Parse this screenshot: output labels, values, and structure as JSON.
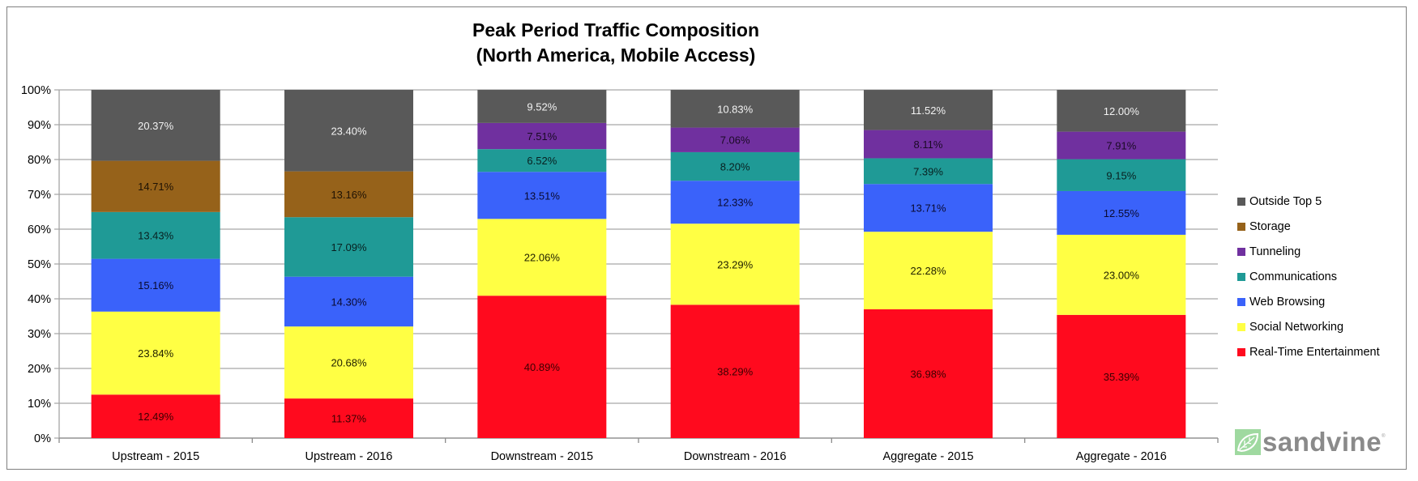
{
  "chart_data": {
    "type": "bar",
    "stacked": true,
    "title": "Peak Period Traffic Composition",
    "subtitle": "(North America, Mobile Access)",
    "xlabel": "",
    "ylabel": "",
    "ylim": [
      0,
      100
    ],
    "yticks": [
      "0%",
      "10%",
      "20%",
      "30%",
      "40%",
      "50%",
      "60%",
      "70%",
      "80%",
      "90%",
      "100%"
    ],
    "grid": true,
    "legend_position": "right",
    "categories": [
      "Upstream - 2015",
      "Upstream - 2016",
      "Downstream - 2015",
      "Downstream - 2016",
      "Aggregate - 2015",
      "Aggregate - 2016"
    ],
    "series": [
      {
        "name": "Real-Time Entertainment",
        "color": "#ff0a1e",
        "label_color": "#3a0000",
        "values": [
          12.49,
          11.37,
          40.89,
          38.29,
          36.98,
          35.39
        ],
        "labels": [
          "12.49%",
          "11.37%",
          "40.89%",
          "38.29%",
          "36.98%",
          "35.39%"
        ]
      },
      {
        "name": "Social Networking",
        "color": "#ffff44",
        "label_color": "#222200",
        "values": [
          23.84,
          20.68,
          22.06,
          23.29,
          22.28,
          23.0
        ],
        "labels": [
          "23.84%",
          "20.68%",
          "22.06%",
          "23.29%",
          "22.28%",
          "23.00%"
        ]
      },
      {
        "name": "Web Browsing",
        "color": "#3a62fa",
        "label_color": "#0a0a30",
        "values": [
          15.16,
          14.3,
          13.51,
          12.33,
          13.71,
          12.55
        ],
        "labels": [
          "15.16%",
          "14.30%",
          "13.51%",
          "12.33%",
          "13.71%",
          "12.55%"
        ]
      },
      {
        "name": "Communications",
        "color": "#1f9a96",
        "label_color": "#082020",
        "values": [
          13.43,
          17.09,
          6.52,
          8.2,
          7.39,
          9.15
        ],
        "labels": [
          "13.43%",
          "17.09%",
          "6.52%",
          "8.20%",
          "7.39%",
          "9.15%"
        ]
      },
      {
        "name": "Tunneling",
        "color": "#70309f",
        "label_color": "#1a0a25",
        "values": [
          0,
          0,
          7.51,
          7.06,
          8.11,
          7.91
        ],
        "labels": [
          "",
          "",
          "7.51%",
          "7.06%",
          "8.11%",
          "7.91%"
        ]
      },
      {
        "name": "Storage",
        "color": "#96621a",
        "label_color": "#1e1204",
        "values": [
          14.71,
          13.16,
          0,
          0,
          0,
          0
        ],
        "labels": [
          "14.71%",
          "13.16%",
          "",
          "",
          "",
          ""
        ]
      },
      {
        "name": "Outside Top 5",
        "color": "#595959",
        "label_color": "#f2f2f2",
        "values": [
          20.37,
          23.4,
          9.52,
          10.83,
          11.52,
          12.0
        ],
        "labels": [
          "20.37%",
          "23.40%",
          "9.52%",
          "10.83%",
          "11.52%",
          "12.00%"
        ]
      }
    ],
    "legend_order": [
      "Outside Top 5",
      "Storage",
      "Tunneling",
      "Communications",
      "Web Browsing",
      "Social Networking",
      "Real-Time Entertainment"
    ]
  },
  "branding": {
    "logo_text": "sandvine",
    "logo_color": "#8a8a8a",
    "logo_mark_color": "#9fd9a0"
  }
}
